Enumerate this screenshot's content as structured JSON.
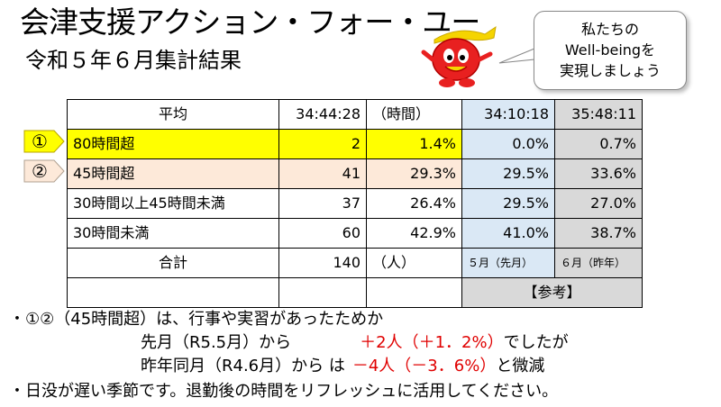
{
  "title": "会津支援アクション・フォー・ユー",
  "subtitle": "令和５年６月集計結果",
  "bubble": [
    "私たちの",
    "Well-beingを",
    "実現しましょう"
  ],
  "table": {
    "header": {
      "label": "平均",
      "current": "34:44:28",
      "unit": "（時間）",
      "prev_month": "34:10:18",
      "last_year": "35:48:11"
    },
    "rows": [
      {
        "marker": "①",
        "label": "80時間超",
        "count": "2",
        "pct": "1.4%",
        "prev_month": "0.0%",
        "last_year": "0.7%",
        "highlight": "yellow"
      },
      {
        "marker": "②",
        "label": "45時間超",
        "count": "41",
        "pct": "29.3%",
        "prev_month": "29.5%",
        "last_year": "33.6%",
        "highlight": "peach"
      },
      {
        "marker": "",
        "label": "30時間以上45時間未満",
        "count": "37",
        "pct": "26.4%",
        "prev_month": "29.5%",
        "last_year": "27.0%",
        "highlight": ""
      },
      {
        "marker": "",
        "label": "30時間未満",
        "count": "60",
        "pct": "42.9%",
        "prev_month": "41.0%",
        "last_year": "38.7%",
        "highlight": ""
      }
    ],
    "total": {
      "label": "合計",
      "count": "140",
      "unit": "（人）",
      "prev_month_caption": "５月（先月）",
      "last_year_caption": "６月（昨年）"
    },
    "reference_label": "【参考】"
  },
  "notes": {
    "line1": "・①②（45時間超）は、行事や実習があったためか",
    "line2_a": "先月（R5.5月）から",
    "line2_b": "＋2人（＋1．2%）",
    "line2_c": "でしたが",
    "line3_a": "昨年同月（R4.6月）から は",
    "line3_b": "－4人（－3．6%）",
    "line3_c": "と微減",
    "line4": "・日没が遅い季節です。退勤後の時間をリフレッシュに活用してください。"
  },
  "colors": {
    "highlight_yellow": "#ffff00",
    "highlight_peach": "#fde9d9",
    "prev_month_bg": "#dae8f5",
    "last_year_bg": "#d9d9d9",
    "emphasis_red": "#e00000"
  }
}
